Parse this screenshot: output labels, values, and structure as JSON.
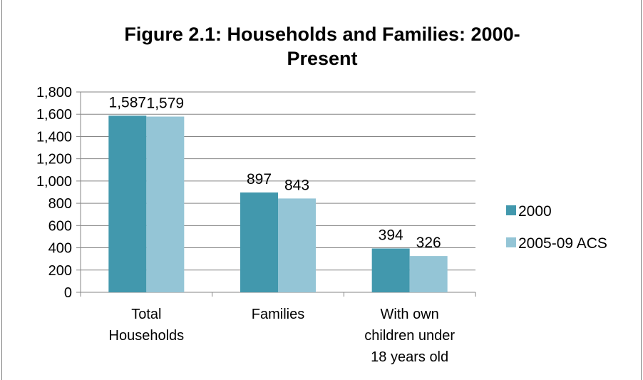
{
  "chart_data": {
    "type": "bar",
    "title_lines": [
      "Figure 2.1: Households and Families: 2000-",
      "Present"
    ],
    "categories": [
      [
        "Total",
        "Households"
      ],
      [
        "Families"
      ],
      [
        "With own",
        "children under",
        "18 years old"
      ]
    ],
    "series": [
      {
        "name": "2000",
        "color": "#4298ad",
        "values": [
          1587,
          897,
          394
        ],
        "labels": [
          "1,587",
          "897",
          "394"
        ]
      },
      {
        "name": "2005-09 ACS",
        "color": "#94c5d6",
        "values": [
          1579,
          843,
          326
        ],
        "labels": [
          "1,579",
          "843",
          "326"
        ]
      }
    ],
    "y_ticks": [
      0,
      200,
      400,
      600,
      800,
      1000,
      1200,
      1400,
      1600,
      1800
    ],
    "y_tick_labels": [
      "0",
      "200",
      "400",
      "600",
      "800",
      "1,000",
      "1,200",
      "1,400",
      "1,600",
      "1,800"
    ],
    "ylim": [
      0,
      1800
    ],
    "grid": true,
    "legend_position": "right",
    "xlabel": "",
    "ylabel": ""
  }
}
